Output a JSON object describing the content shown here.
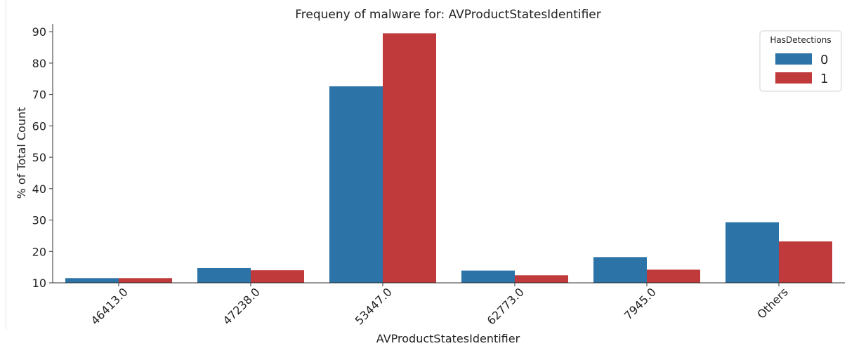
{
  "chart_data": {
    "type": "bar",
    "title": "Frequeny of malware for: AVProductStatesIdentifier",
    "xlabel": "AVProductStatesIdentifier",
    "ylabel": "% of Total Count",
    "categories": [
      "46413.0",
      "47238.0",
      "53447.0",
      "62773.0",
      "7945.0",
      "Others"
    ],
    "series": [
      {
        "name": "0",
        "color": "#2c73a8",
        "values": [
          11.5,
          14.7,
          72.6,
          13.9,
          18.2,
          29.3
        ]
      },
      {
        "name": "1",
        "color": "#c0393b",
        "values": [
          11.5,
          14.0,
          89.5,
          12.4,
          14.2,
          23.2
        ]
      }
    ],
    "ylim": [
      10,
      92.5
    ],
    "yticks": [
      10,
      20,
      30,
      40,
      50,
      60,
      70,
      80,
      90
    ],
    "legend": {
      "title": "HasDetections",
      "placement": "top-right"
    },
    "grid": false
  }
}
